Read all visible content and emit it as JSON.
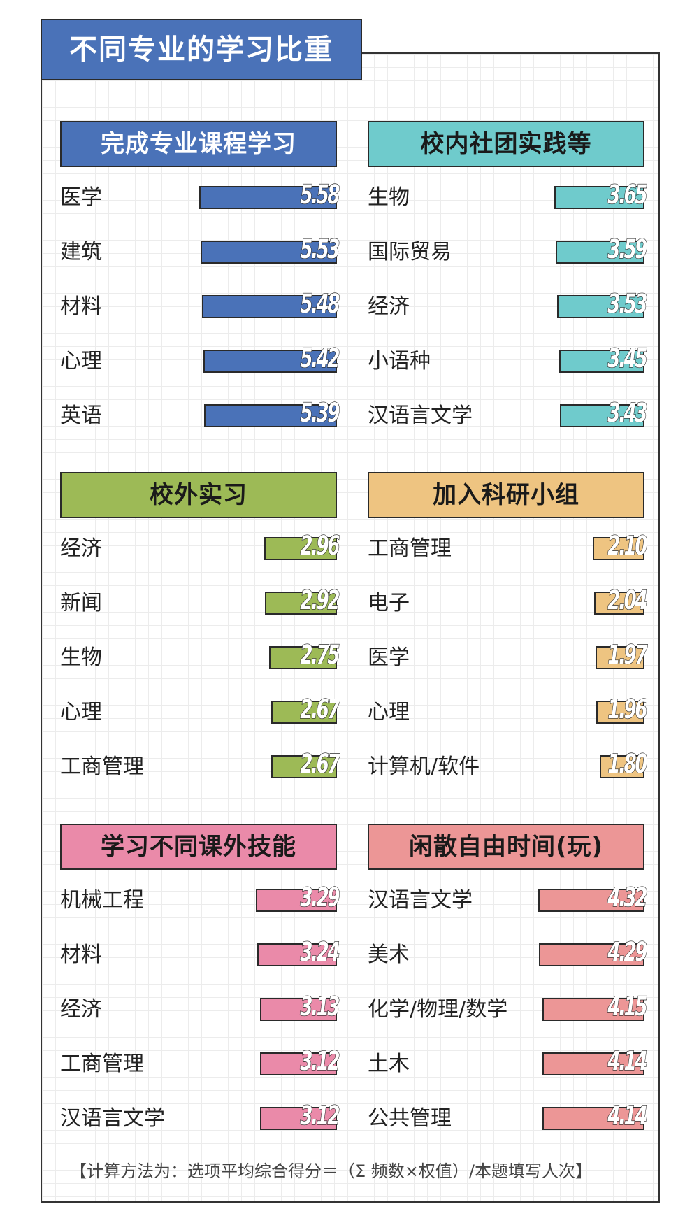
{
  "title": "不同专业的学习比重",
  "footnote": "【计算方法为：选项平均综合得分＝（Σ 频数×权值）/本题填写人次】",
  "chart_data": [
    {
      "type": "bar",
      "title": "完成专业课程学习",
      "color": "#4a72b8",
      "text_color": "#ffffff",
      "categories": [
        "医学",
        "建筑",
        "材料",
        "心理",
        "英语"
      ],
      "values": [
        5.58,
        5.53,
        5.48,
        5.42,
        5.39
      ]
    },
    {
      "type": "bar",
      "title": "校内社团实践等",
      "color": "#6fcbcc",
      "text_color": "#1a1a1a",
      "categories": [
        "生物",
        "国际贸易",
        "经济",
        "小语种",
        "汉语言文学"
      ],
      "values": [
        3.65,
        3.59,
        3.53,
        3.45,
        3.43
      ]
    },
    {
      "type": "bar",
      "title": "校外实习",
      "color": "#9dba56",
      "text_color": "#1a1a1a",
      "categories": [
        "经济",
        "新闻",
        "生物",
        "心理",
        "工商管理"
      ],
      "values": [
        2.96,
        2.92,
        2.75,
        2.67,
        2.67
      ]
    },
    {
      "type": "bar",
      "title": "加入科研小组",
      "color": "#eec481",
      "text_color": "#1a1a1a",
      "categories": [
        "工商管理",
        "电子",
        "医学",
        "心理",
        "计算机/软件"
      ],
      "values": [
        2.1,
        2.04,
        1.97,
        1.96,
        1.8
      ],
      "value_labels": [
        "2.10",
        "2.04",
        "1.97",
        "1.96",
        "1.80"
      ]
    },
    {
      "type": "bar",
      "title": "学习不同课外技能",
      "color": "#ea8aa9",
      "text_color": "#1a1a1a",
      "categories": [
        "机械工程",
        "材料",
        "经济",
        "工商管理",
        "汉语言文学"
      ],
      "values": [
        3.29,
        3.24,
        3.13,
        3.12,
        3.12
      ]
    },
    {
      "type": "bar",
      "title": "闲散自由时间(玩)",
      "color": "#ec9696",
      "text_color": "#1a1a1a",
      "categories": [
        "汉语言文学",
        "美术",
        "化学/物理/数学",
        "土木",
        "公共管理"
      ],
      "values": [
        4.32,
        4.29,
        4.15,
        4.14,
        4.14
      ]
    }
  ]
}
